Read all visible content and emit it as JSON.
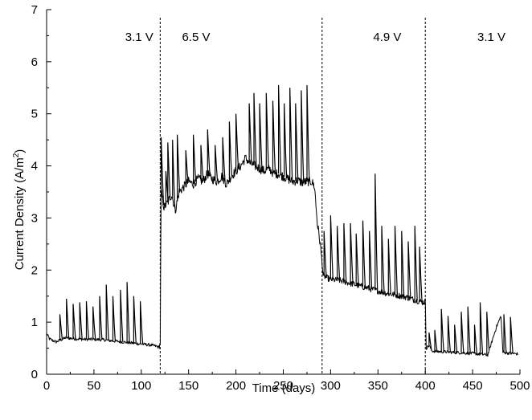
{
  "chart_data": {
    "type": "line",
    "title": "",
    "xlabel": "Time (days)",
    "ylabel": "Current Density (A/m²)",
    "ylabel_base": "Current Density (A/m",
    "ylabel_sup": "2",
    "ylabel_close": ")",
    "xlim": [
      0,
      500
    ],
    "ylim": [
      0,
      7
    ],
    "xticks": [
      0,
      50,
      100,
      150,
      200,
      250,
      300,
      350,
      400,
      450,
      500
    ],
    "yticks": [
      0,
      1,
      2,
      3,
      4,
      5,
      6,
      7
    ],
    "grid": false,
    "line_color": "#000000",
    "phase_boundaries": [
      120,
      291,
      400
    ],
    "phase_labels": [
      {
        "text": "3.1 V",
        "x": 83
      },
      {
        "text": "6.5 V",
        "x": 143
      },
      {
        "text": "4.9 V",
        "x": 345
      },
      {
        "text": "3.1 V",
        "x": 455
      }
    ],
    "baseline": [
      [
        0,
        0.78
      ],
      [
        3,
        0.68
      ],
      [
        6,
        0.65
      ],
      [
        10,
        0.62
      ],
      [
        15,
        0.66
      ],
      [
        20,
        0.7
      ],
      [
        30,
        0.68
      ],
      [
        40,
        0.67
      ],
      [
        50,
        0.67
      ],
      [
        60,
        0.66
      ],
      [
        70,
        0.64
      ],
      [
        80,
        0.62
      ],
      [
        90,
        0.6
      ],
      [
        100,
        0.58
      ],
      [
        110,
        0.56
      ],
      [
        115,
        0.54
      ],
      [
        119,
        0.52
      ],
      [
        120,
        0.62
      ],
      [
        121,
        3.5
      ],
      [
        124,
        3.2
      ],
      [
        128,
        3.3
      ],
      [
        132,
        3.45
      ],
      [
        136,
        3.15
      ],
      [
        140,
        3.5
      ],
      [
        145,
        3.6
      ],
      [
        150,
        3.7
      ],
      [
        155,
        3.65
      ],
      [
        160,
        3.75
      ],
      [
        165,
        3.7
      ],
      [
        170,
        3.85
      ],
      [
        175,
        3.75
      ],
      [
        180,
        3.7
      ],
      [
        185,
        3.8
      ],
      [
        190,
        3.65
      ],
      [
        195,
        3.8
      ],
      [
        200,
        3.9
      ],
      [
        205,
        4.0
      ],
      [
        210,
        4.15
      ],
      [
        215,
        4.05
      ],
      [
        220,
        4.0
      ],
      [
        225,
        3.95
      ],
      [
        230,
        3.9
      ],
      [
        235,
        3.95
      ],
      [
        240,
        3.85
      ],
      [
        245,
        3.85
      ],
      [
        250,
        3.8
      ],
      [
        255,
        3.75
      ],
      [
        260,
        3.7
      ],
      [
        265,
        3.72
      ],
      [
        270,
        3.68
      ],
      [
        275,
        3.7
      ],
      [
        280,
        3.7
      ],
      [
        283,
        3.6
      ],
      [
        286,
        2.9
      ],
      [
        289,
        2.5
      ],
      [
        291,
        2.15
      ],
      [
        292,
        1.9
      ],
      [
        296,
        1.85
      ],
      [
        300,
        1.82
      ],
      [
        310,
        1.8
      ],
      [
        320,
        1.75
      ],
      [
        330,
        1.7
      ],
      [
        340,
        1.65
      ],
      [
        350,
        1.6
      ],
      [
        360,
        1.55
      ],
      [
        370,
        1.52
      ],
      [
        380,
        1.48
      ],
      [
        390,
        1.42
      ],
      [
        398,
        1.38
      ],
      [
        400,
        1.4
      ],
      [
        401,
        0.5
      ],
      [
        404,
        0.55
      ],
      [
        407,
        0.45
      ],
      [
        410,
        0.44
      ],
      [
        420,
        0.43
      ],
      [
        430,
        0.42
      ],
      [
        440,
        0.41
      ],
      [
        450,
        0.4
      ],
      [
        460,
        0.38
      ],
      [
        466,
        0.37
      ],
      [
        475,
        0.9
      ],
      [
        480,
        1.12
      ],
      [
        482,
        0.42
      ],
      [
        490,
        0.4
      ],
      [
        498,
        0.39
      ]
    ],
    "spikes": [
      {
        "x": 14,
        "y": 1.15
      },
      {
        "x": 21,
        "y": 1.45
      },
      {
        "x": 28,
        "y": 1.35
      },
      {
        "x": 35,
        "y": 1.38
      },
      {
        "x": 42,
        "y": 1.4
      },
      {
        "x": 49,
        "y": 1.3
      },
      {
        "x": 56,
        "y": 1.5
      },
      {
        "x": 63,
        "y": 1.72
      },
      {
        "x": 70,
        "y": 1.5
      },
      {
        "x": 78,
        "y": 1.62
      },
      {
        "x": 85,
        "y": 1.77
      },
      {
        "x": 92,
        "y": 1.5
      },
      {
        "x": 99,
        "y": 1.4
      },
      {
        "x": 121,
        "y": 4.55
      },
      {
        "x": 126,
        "y": 3.9
      },
      {
        "x": 128,
        "y": 4.45
      },
      {
        "x": 133,
        "y": 4.5
      },
      {
        "x": 138,
        "y": 4.6
      },
      {
        "x": 147,
        "y": 4.3
      },
      {
        "x": 155,
        "y": 4.6
      },
      {
        "x": 163,
        "y": 4.4
      },
      {
        "x": 170,
        "y": 4.7
      },
      {
        "x": 178,
        "y": 4.4
      },
      {
        "x": 186,
        "y": 4.55
      },
      {
        "x": 193,
        "y": 4.85
      },
      {
        "x": 200,
        "y": 5.0
      },
      {
        "x": 214,
        "y": 5.2
      },
      {
        "x": 219,
        "y": 5.4
      },
      {
        "x": 225,
        "y": 5.2
      },
      {
        "x": 232,
        "y": 5.4
      },
      {
        "x": 239,
        "y": 5.25
      },
      {
        "x": 245,
        "y": 5.55
      },
      {
        "x": 251,
        "y": 5.2
      },
      {
        "x": 257,
        "y": 5.5
      },
      {
        "x": 263,
        "y": 5.2
      },
      {
        "x": 269,
        "y": 5.45
      },
      {
        "x": 275,
        "y": 5.55
      },
      {
        "x": 293,
        "y": 2.75
      },
      {
        "x": 300,
        "y": 3.05
      },
      {
        "x": 307,
        "y": 2.85
      },
      {
        "x": 314,
        "y": 2.9
      },
      {
        "x": 321,
        "y": 2.9
      },
      {
        "x": 327,
        "y": 2.7
      },
      {
        "x": 334,
        "y": 2.95
      },
      {
        "x": 341,
        "y": 2.75
      },
      {
        "x": 347,
        "y": 3.85
      },
      {
        "x": 354,
        "y": 2.85
      },
      {
        "x": 361,
        "y": 2.6
      },
      {
        "x": 368,
        "y": 2.85
      },
      {
        "x": 375,
        "y": 2.75
      },
      {
        "x": 382,
        "y": 2.55
      },
      {
        "x": 389,
        "y": 2.85
      },
      {
        "x": 394,
        "y": 2.45
      },
      {
        "x": 404,
        "y": 0.8
      },
      {
        "x": 410,
        "y": 0.85
      },
      {
        "x": 417,
        "y": 1.25
      },
      {
        "x": 424,
        "y": 1.12
      },
      {
        "x": 431,
        "y": 0.95
      },
      {
        "x": 438,
        "y": 1.2
      },
      {
        "x": 445,
        "y": 1.3
      },
      {
        "x": 452,
        "y": 0.95
      },
      {
        "x": 458,
        "y": 1.38
      },
      {
        "x": 465,
        "y": 1.2
      },
      {
        "x": 483,
        "y": 1.15
      },
      {
        "x": 490,
        "y": 1.1
      }
    ]
  }
}
